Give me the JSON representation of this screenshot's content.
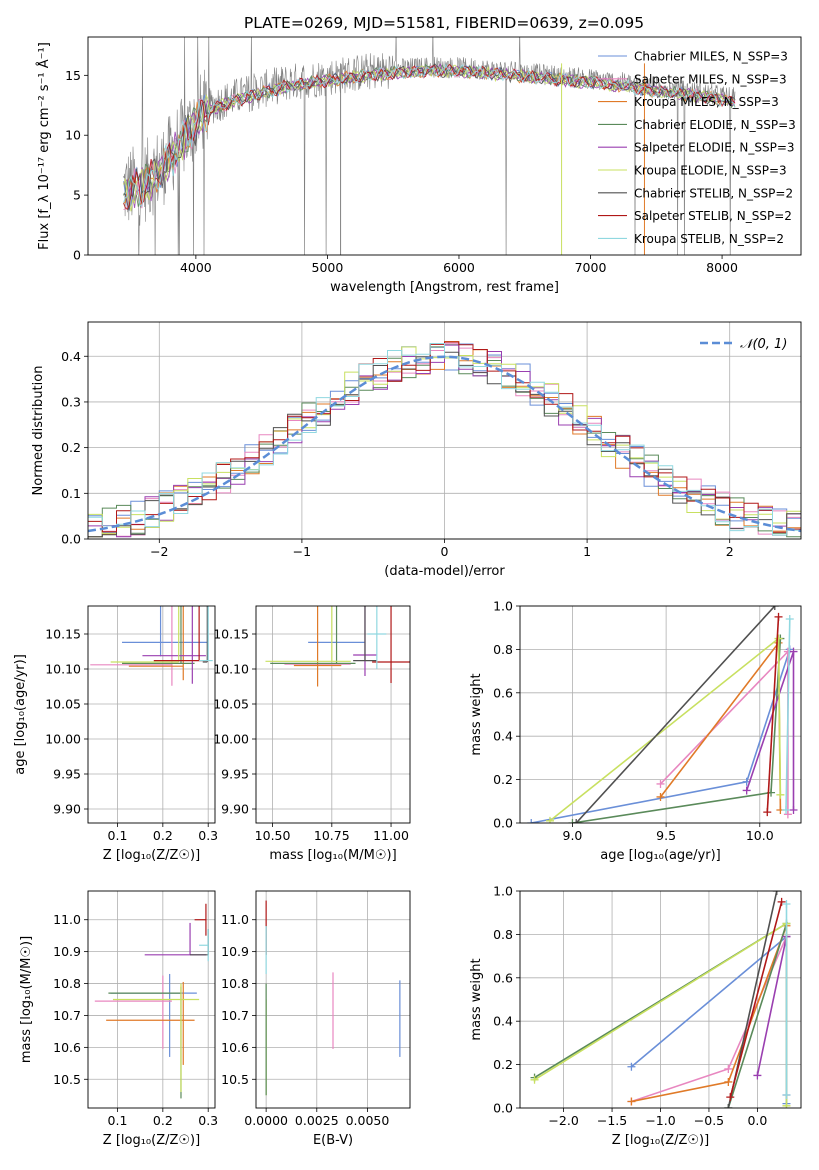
{
  "figure": {
    "title": "PLATE=0269, MJD=51581, FIBERID=0639, z=0.095"
  },
  "colors": {
    "Chabrier MILES": "#6a8fd8",
    "Salpeter MILES": "#e887c0",
    "Kroupa MILES": "#e07a28",
    "Chabrier ELODIE": "#5a8a5a",
    "Salpeter ELODIE": "#9a3fb0",
    "Kroupa ELODIE": "#c8e060",
    "Chabrier STELIB": "#505050",
    "Salpeter STELIB": "#b01818",
    "Kroupa STELIB": "#90d8e0",
    "normal": "#5b8dd6"
  },
  "chart_data": [
    {
      "type": "line",
      "xlabel": "wavelength [Angstrom, rest frame]",
      "ylabel": "Flux [f_λ 10⁻¹⁷ erg cm⁻² s⁻¹ Å⁻¹]",
      "xlim": [
        3180,
        8600
      ],
      "ylim": [
        0,
        18.2
      ],
      "xticks": [
        4000,
        5000,
        6000,
        7000,
        8000
      ],
      "yticks": [
        0,
        5,
        10,
        15
      ],
      "grid": false,
      "legend_position": "top-right",
      "series": [
        {
          "name": "Chabrier MILES, N_SSP=3"
        },
        {
          "name": "Salpeter MILES, N_SSP=3"
        },
        {
          "name": "Kroupa MILES, N_SSP=3"
        },
        {
          "name": "Chabrier ELODIE, N_SSP=3"
        },
        {
          "name": "Salpeter ELODIE, N_SSP=3"
        },
        {
          "name": "Kroupa ELODIE, N_SSP=3"
        },
        {
          "name": "Chabrier STELIB, N_SSP=2"
        },
        {
          "name": "Salpeter STELIB, N_SSP=2"
        },
        {
          "name": "Kroupa STELIB, N_SSP=2"
        }
      ],
      "continuum": {
        "x": [
          3450,
          3600,
          3750,
          3850,
          3950,
          4050,
          4150,
          4300,
          4500,
          4700,
          4900,
          5100,
          5300,
          5500,
          5800,
          6100,
          6400,
          6700,
          7000,
          7300,
          7500,
          7800,
          8100
        ],
        "y": [
          5.5,
          6.0,
          7.5,
          9.0,
          10.5,
          12.0,
          12.6,
          13.2,
          13.8,
          14.4,
          14.7,
          15.0,
          15.3,
          15.5,
          15.7,
          15.6,
          15.3,
          15.0,
          14.7,
          14.3,
          14.0,
          13.6,
          13.1
        ]
      }
    },
    {
      "type": "line",
      "xlabel": "(data-model)/error",
      "ylabel": "Normed distribution",
      "xlim": [
        -2.5,
        2.5
      ],
      "ylim": [
        0,
        0.475
      ],
      "xticks": [
        -2,
        -1,
        0,
        1,
        2
      ],
      "yticks": [
        0.0,
        0.1,
        0.2,
        0.3,
        0.4
      ],
      "grid": true,
      "legend_position": "top-right",
      "series": [
        {
          "name": "𝒩(0, 1)"
        }
      ],
      "note_histograms": "nine step histograms of residuals, one per model"
    },
    {
      "type": "scatter",
      "xlabel": "Z [log₁₀(Z/Z☉)]",
      "ylabel": "age [log₁₀(age/yr)]",
      "xlim": [
        0.035,
        0.315
      ],
      "ylim": [
        9.88,
        10.19
      ],
      "xticks": [
        0.1,
        0.2,
        0.3
      ],
      "yticks": [
        9.9,
        9.95,
        10.0,
        10.05,
        10.1,
        10.15
      ],
      "grid": true,
      "points": [
        {
          "model": "Chabrier MILES",
          "x": 0.195,
          "y": 10.138,
          "xerr": [
            0.085,
            0.105
          ],
          "yerr": [
            0.02,
            0.158
          ]
        },
        {
          "model": "Salpeter MILES",
          "x": 0.22,
          "y": 10.106,
          "xerr": [
            0.18,
            0.0
          ],
          "yerr": [
            0.03,
            0.175
          ]
        },
        {
          "model": "Kroupa MILES",
          "x": 0.245,
          "y": 10.104,
          "xerr": [
            0.12,
            0.0
          ],
          "yerr": [
            0.02,
            0.155
          ]
        },
        {
          "model": "Chabrier ELODIE",
          "x": 0.24,
          "y": 10.108,
          "xerr": [
            0.13,
            0.03
          ],
          "yerr": [
            0.0,
            0.1
          ]
        },
        {
          "model": "Salpeter ELODIE",
          "x": 0.265,
          "y": 10.119,
          "xerr": [
            0.11,
            0.03
          ],
          "yerr": [
            0.04,
            0.16
          ]
        },
        {
          "model": "Kroupa ELODIE",
          "x": 0.235,
          "y": 10.11,
          "xerr": [
            0.15,
            0.0
          ],
          "yerr": [
            0.0,
            0.12
          ]
        },
        {
          "model": "Chabrier STELIB",
          "x": 0.298,
          "y": 10.11,
          "xerr": [
            0.01,
            0.0
          ],
          "yerr": [
            0.0,
            0.155
          ]
        },
        {
          "model": "Salpeter STELIB",
          "x": 0.28,
          "y": 10.112,
          "xerr": [
            0.1,
            0.02
          ],
          "yerr": [
            0.0,
            0.15
          ]
        },
        {
          "model": "Kroupa STELIB",
          "x": 0.3,
          "y": 10.112,
          "xerr": [
            0.02,
            0.01
          ],
          "yerr": [
            0.0,
            0.15
          ]
        }
      ]
    },
    {
      "type": "scatter",
      "xlabel": "mass [log₁₀(M/M☉)]",
      "ylabel": "",
      "xlim": [
        10.43,
        11.08
      ],
      "ylim": [
        9.88,
        10.19
      ],
      "xticks": [
        10.5,
        10.75,
        11.0
      ],
      "yticks": [
        9.9,
        9.95,
        10.0,
        10.05,
        10.1,
        10.15
      ],
      "grid": true,
      "points": [
        {
          "model": "Chabrier MILES",
          "x": 10.77,
          "y": 10.138,
          "xerr": [
            0.12,
            0.12
          ],
          "yerr": [
            0.0,
            0.0
          ]
        },
        {
          "model": "Salpeter MILES",
          "x": 10.75,
          "y": 10.107,
          "xerr": [
            0.2,
            0.08
          ],
          "yerr": [
            0.0,
            0.0
          ]
        },
        {
          "model": "Kroupa MILES",
          "x": 10.69,
          "y": 10.105,
          "xerr": [
            0.1,
            0.1
          ],
          "yerr": [
            0.03,
            0.18
          ]
        },
        {
          "model": "Chabrier ELODIE",
          "x": 10.77,
          "y": 10.108,
          "xerr": [
            0.28,
            0.08
          ],
          "yerr": [
            0.0,
            0.2
          ]
        },
        {
          "model": "Salpeter ELODIE",
          "x": 10.89,
          "y": 10.12,
          "xerr": [
            0.05,
            0.05
          ],
          "yerr": [
            0.03,
            0.18
          ]
        },
        {
          "model": "Kroupa ELODIE",
          "x": 10.75,
          "y": 10.111,
          "xerr": [
            0.28,
            0.08
          ],
          "yerr": [
            0.0,
            0.2
          ]
        },
        {
          "model": "Chabrier STELIB",
          "x": 10.89,
          "y": 10.112,
          "xerr": [
            0.05,
            0.05
          ],
          "yerr": [
            0.0,
            0.2
          ]
        },
        {
          "model": "Salpeter STELIB",
          "x": 11.0,
          "y": 10.11,
          "xerr": [
            0.08,
            0.08
          ],
          "yerr": [
            0.03,
            0.18
          ]
        },
        {
          "model": "Kroupa STELIB",
          "x": 10.94,
          "y": 10.15,
          "xerr": [
            0.04,
            0.04
          ],
          "yerr": [
            0.05,
            0.16
          ]
        }
      ]
    },
    {
      "type": "line",
      "xlabel": "age [log₁₀(age/yr)]",
      "ylabel": "mass weight",
      "xlim": [
        8.72,
        10.22
      ],
      "ylim": [
        0,
        1.0
      ],
      "xticks": [
        9.0,
        9.5,
        10.0
      ],
      "yticks": [
        0.0,
        0.2,
        0.4,
        0.6,
        0.8,
        1.0
      ],
      "grid": true,
      "series": [
        {
          "model": "Chabrier MILES",
          "x": [
            8.78,
            9.93,
            10.16
          ],
          "y": [
            0.0,
            0.19,
            0.8
          ]
        },
        {
          "model": "Salpeter MILES",
          "x": [
            9.47,
            10.15,
            10.15
          ],
          "y": [
            0.18,
            0.79,
            0.04
          ]
        },
        {
          "model": "Kroupa MILES",
          "x": [
            9.47,
            10.1,
            10.11
          ],
          "y": [
            0.12,
            0.83,
            0.06
          ]
        },
        {
          "model": "Chabrier ELODIE",
          "x": [
            9.0,
            10.06,
            10.11
          ],
          "y": [
            0.0,
            0.14,
            0.85
          ]
        },
        {
          "model": "Salpeter ELODIE",
          "x": [
            9.93,
            10.18,
            10.18
          ],
          "y": [
            0.15,
            0.79,
            0.06
          ]
        },
        {
          "model": "Kroupa ELODIE",
          "x": [
            8.88,
            10.1,
            10.11
          ],
          "y": [
            0.01,
            0.85,
            0.13
          ]
        },
        {
          "model": "Chabrier STELIB",
          "x": [
            9.02,
            10.08
          ],
          "y": [
            0.0,
            1.0
          ]
        },
        {
          "model": "Salpeter STELIB",
          "x": [
            10.04,
            10.1
          ],
          "y": [
            0.05,
            0.95
          ]
        },
        {
          "model": "Kroupa STELIB",
          "x": [
            10.14,
            10.16
          ],
          "y": [
            0.06,
            0.94
          ]
        }
      ]
    },
    {
      "type": "scatter",
      "xlabel": "Z [log₁₀(Z/Z☉)]",
      "ylabel": "mass [log₁₀(M/M☉)]",
      "xlim": [
        0.035,
        0.315
      ],
      "ylim": [
        10.41,
        11.09
      ],
      "xticks": [
        0.1,
        0.2,
        0.3
      ],
      "yticks": [
        10.5,
        10.6,
        10.7,
        10.8,
        10.9,
        11.0
      ],
      "grid": true,
      "points": [
        {
          "model": "Chabrier MILES",
          "x": 0.215,
          "y": 10.77,
          "xerr": [
            0.13,
            0.06
          ],
          "yerr": [
            0.2,
            0.06
          ]
        },
        {
          "model": "Salpeter MILES",
          "x": 0.2,
          "y": 10.745,
          "xerr": [
            0.15,
            0.02
          ],
          "yerr": [
            0.15,
            0.08
          ]
        },
        {
          "model": "Kroupa MILES",
          "x": 0.245,
          "y": 10.685,
          "xerr": [
            0.17,
            0.025
          ],
          "yerr": [
            0.14,
            0.12
          ]
        },
        {
          "model": "Chabrier ELODIE",
          "x": 0.24,
          "y": 10.77,
          "xerr": [
            0.16,
            0.0
          ],
          "yerr": [
            0.33,
            0.02
          ]
        },
        {
          "model": "Salpeter ELODIE",
          "x": 0.26,
          "y": 10.89,
          "xerr": [
            0.1,
            0.035
          ],
          "yerr": [
            0.0,
            0.1
          ]
        },
        {
          "model": "Kroupa ELODIE",
          "x": 0.24,
          "y": 10.75,
          "xerr": [
            0.15,
            0.04
          ],
          "yerr": [
            0.29,
            0.05
          ]
        },
        {
          "model": "Chabrier STELIB",
          "x": 0.3,
          "y": 10.89,
          "xerr": [
            0.04,
            0.0
          ],
          "yerr": [
            0.0,
            0.08
          ]
        },
        {
          "model": "Salpeter STELIB",
          "x": 0.295,
          "y": 11.0,
          "xerr": [
            0.025,
            0.0
          ],
          "yerr": [
            0.05,
            0.05
          ]
        },
        {
          "model": "Kroupa STELIB",
          "x": 0.3,
          "y": 10.92,
          "xerr": [
            0.02,
            0.0
          ],
          "yerr": [
            0.05,
            0.05
          ]
        }
      ]
    },
    {
      "type": "scatter",
      "xlabel": "E(B-V)",
      "ylabel": "",
      "xlim": [
        -0.0005,
        0.0071
      ],
      "ylim": [
        10.41,
        11.09
      ],
      "xticks": [
        0.0,
        0.0025,
        0.005
      ],
      "xticklabels": [
        "0.0000",
        "0.0025",
        "0.0050"
      ],
      "yticks": [
        10.5,
        10.6,
        10.7,
        10.8,
        10.9,
        11.0
      ],
      "grid": true,
      "points": [
        {
          "model": "Chabrier MILES",
          "x": 0.0066,
          "y": 10.69,
          "yerr": [
            0.12,
            0.12
          ]
        },
        {
          "model": "Salpeter MILES",
          "x": 0.0033,
          "y": 10.715,
          "yerr": [
            0.12,
            0.12
          ]
        },
        {
          "model": "Kroupa ELODIE",
          "x": 0.0,
          "y": 10.7,
          "yerr": [
            0.25,
            0.05
          ]
        },
        {
          "model": "Chabrier ELODIE",
          "x": 0.0,
          "y": 10.75,
          "yerr": [
            0.3,
            0.05
          ]
        },
        {
          "model": "Salpeter STELIB",
          "x": 0.0,
          "y": 10.96,
          "yerr": [
            0.07,
            0.1
          ]
        },
        {
          "model": "Kroupa STELIB",
          "x": 0.0,
          "y": 10.9,
          "yerr": [
            0.07,
            0.08
          ]
        }
      ]
    },
    {
      "type": "line",
      "xlabel": "Z [log₁₀(Z/Z☉)]",
      "ylabel": "mass weight",
      "xlim": [
        -2.45,
        0.45
      ],
      "ylim": [
        0,
        1.0
      ],
      "xticks": [
        -2.0,
        -1.5,
        -1.0,
        -0.5,
        0.0
      ],
      "yticks": [
        0.0,
        0.2,
        0.4,
        0.6,
        0.8,
        1.0
      ],
      "grid": true,
      "series": [
        {
          "model": "Chabrier MILES",
          "x": [
            -1.3,
            0.3,
            0.3
          ],
          "y": [
            0.19,
            0.79,
            0.02
          ]
        },
        {
          "model": "Salpeter MILES",
          "x": [
            -1.3,
            -0.3,
            0.3
          ],
          "y": [
            0.03,
            0.18,
            0.79
          ]
        },
        {
          "model": "Kroupa MILES",
          "x": [
            -1.3,
            -0.3,
            0.3
          ],
          "y": [
            0.03,
            0.12,
            0.84
          ]
        },
        {
          "model": "Chabrier ELODIE",
          "x": [
            -2.3,
            0.3,
            -0.3
          ],
          "y": [
            0.14,
            0.85,
            0.0
          ]
        },
        {
          "model": "Salpeter ELODIE",
          "x": [
            0.0,
            0.3,
            0.3
          ],
          "y": [
            0.15,
            0.79,
            0.06
          ]
        },
        {
          "model": "Kroupa ELODIE",
          "x": [
            -2.3,
            0.3,
            0.3
          ],
          "y": [
            0.13,
            0.85,
            0.01
          ]
        },
        {
          "model": "Chabrier STELIB",
          "x": [
            -0.3,
            0.2
          ],
          "y": [
            0.0,
            1.0
          ]
        },
        {
          "model": "Salpeter STELIB",
          "x": [
            -0.28,
            0.25
          ],
          "y": [
            0.05,
            0.95
          ]
        },
        {
          "model": "Kroupa STELIB",
          "x": [
            0.3,
            0.3
          ],
          "y": [
            0.06,
            0.94
          ]
        }
      ]
    }
  ]
}
